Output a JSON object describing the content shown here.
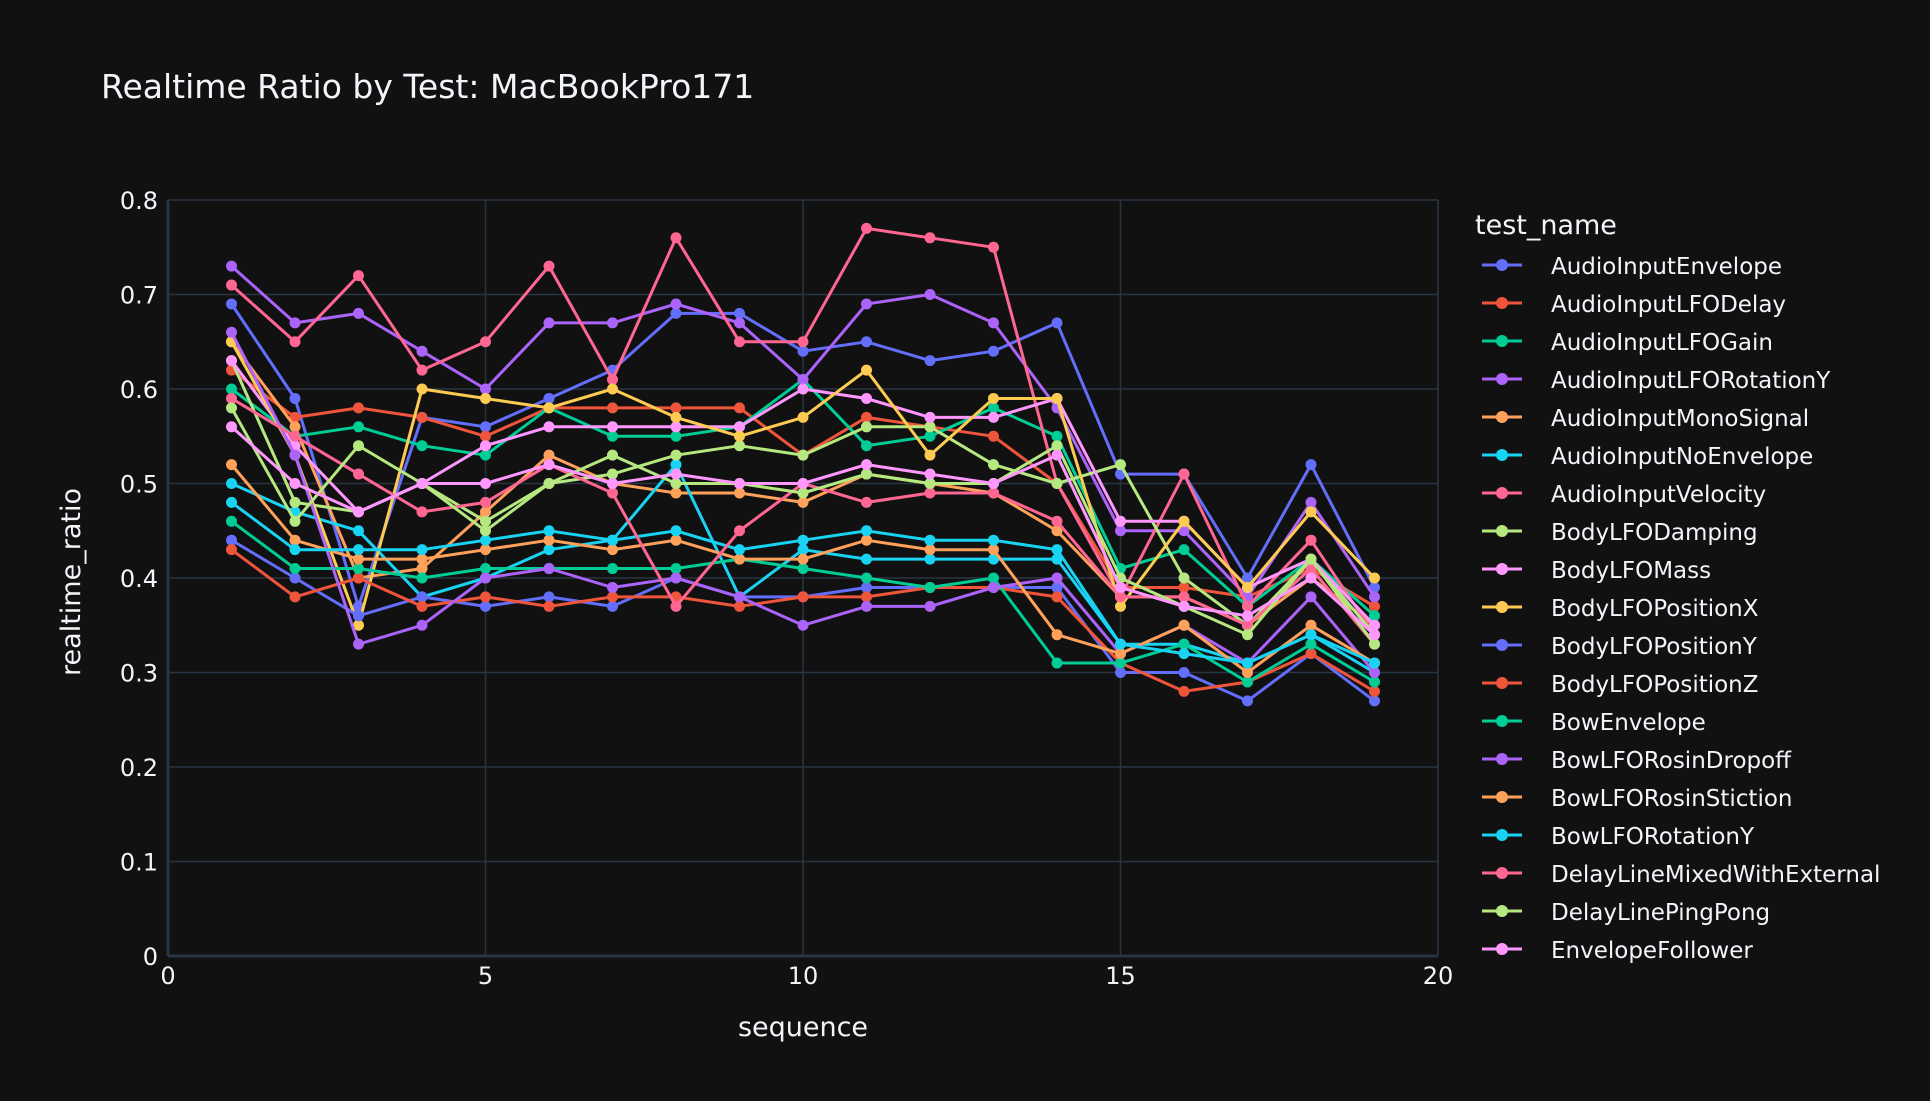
{
  "chart_data": {
    "type": "line",
    "title": "Realtime Ratio by Test: MacBookPro171",
    "xlabel": "sequence",
    "ylabel": "realtime_ratio",
    "xlim": [
      0,
      20
    ],
    "ylim": [
      0,
      0.8
    ],
    "x_ticks": [
      "0",
      "5",
      "10",
      "15",
      "20"
    ],
    "y_ticks": [
      "0",
      "0.1",
      "0.2",
      "0.3",
      "0.4",
      "0.5",
      "0.6",
      "0.7",
      "0.8"
    ],
    "grid": true,
    "markers": true,
    "background": "#111111",
    "text_color": "#f2f5fa",
    "grid_color": "#283442",
    "legend": {
      "title": "test_name",
      "placement": "right"
    },
    "x": [
      1,
      2,
      3,
      4,
      5,
      6,
      7,
      8,
      9,
      10,
      11,
      12,
      13,
      14,
      15,
      16,
      17,
      18,
      19
    ],
    "series": [
      {
        "name": "AudioInputEnvelope",
        "color": "#636efa",
        "values": [
          0.69,
          0.59,
          0.37,
          0.57,
          0.56,
          0.59,
          0.62,
          0.68,
          0.68,
          0.64,
          0.65,
          0.63,
          0.64,
          0.67,
          0.51,
          0.51,
          0.4,
          0.52,
          0.39
        ]
      },
      {
        "name": "AudioInputLFODelay",
        "color": "#EF553B",
        "values": [
          0.62,
          0.57,
          0.58,
          0.57,
          0.55,
          0.58,
          0.58,
          0.58,
          0.58,
          0.53,
          0.57,
          0.56,
          0.55,
          0.5,
          0.39,
          0.39,
          0.38,
          0.41,
          0.37
        ]
      },
      {
        "name": "AudioInputLFOGain",
        "color": "#00cc96",
        "values": [
          0.6,
          0.55,
          0.56,
          0.54,
          0.53,
          0.58,
          0.55,
          0.55,
          0.56,
          0.61,
          0.54,
          0.55,
          0.58,
          0.55,
          0.41,
          0.43,
          0.37,
          0.42,
          0.36
        ]
      },
      {
        "name": "AudioInputLFORotationY",
        "color": "#ab63fa",
        "values": [
          0.73,
          0.67,
          0.68,
          0.64,
          0.6,
          0.67,
          0.67,
          0.69,
          0.67,
          0.61,
          0.69,
          0.7,
          0.67,
          0.58,
          0.45,
          0.45,
          0.38,
          0.48,
          0.38
        ]
      },
      {
        "name": "AudioInputMonoSignal",
        "color": "#FFA15A",
        "values": [
          0.65,
          0.56,
          0.4,
          0.41,
          0.47,
          0.53,
          0.5,
          0.49,
          0.49,
          0.48,
          0.51,
          0.5,
          0.49,
          0.45,
          0.38,
          0.38,
          0.35,
          0.4,
          0.35
        ]
      },
      {
        "name": "AudioInputNoEnvelope",
        "color": "#19d3f3",
        "values": [
          0.5,
          0.47,
          0.45,
          0.38,
          0.4,
          0.43,
          0.44,
          0.52,
          0.38,
          0.43,
          0.42,
          0.42,
          0.42,
          0.42,
          0.33,
          0.33,
          0.31,
          0.34,
          0.3
        ]
      },
      {
        "name": "AudioInputVelocity",
        "color": "#FF6692",
        "values": [
          0.71,
          0.65,
          0.72,
          0.62,
          0.65,
          0.73,
          0.61,
          0.76,
          0.65,
          0.65,
          0.77,
          0.76,
          0.75,
          0.5,
          0.38,
          0.51,
          0.37,
          0.44,
          0.34
        ]
      },
      {
        "name": "BodyLFODamping",
        "color": "#B6E880",
        "values": [
          0.63,
          0.48,
          0.47,
          0.5,
          0.46,
          0.5,
          0.51,
          0.53,
          0.54,
          0.53,
          0.56,
          0.56,
          0.52,
          0.5,
          0.52,
          0.4,
          0.35,
          0.42,
          0.34
        ]
      },
      {
        "name": "BodyLFOMass",
        "color": "#FF97FF",
        "values": [
          0.63,
          0.54,
          0.47,
          0.5,
          0.54,
          0.56,
          0.56,
          0.56,
          0.56,
          0.6,
          0.59,
          0.57,
          0.57,
          0.59,
          0.46,
          0.46,
          0.39,
          0.42,
          0.35
        ]
      },
      {
        "name": "BodyLFOPositionX",
        "color": "#FECB52",
        "values": [
          0.65,
          0.53,
          0.35,
          0.6,
          0.59,
          0.58,
          0.6,
          0.57,
          0.55,
          0.57,
          0.62,
          0.53,
          0.59,
          0.59,
          0.37,
          0.46,
          0.39,
          0.47,
          0.4
        ]
      },
      {
        "name": "BodyLFOPositionY",
        "color": "#636efa",
        "values": [
          0.44,
          0.4,
          0.36,
          0.38,
          0.37,
          0.38,
          0.37,
          0.4,
          0.38,
          0.38,
          0.39,
          0.39,
          0.39,
          0.39,
          0.3,
          0.3,
          0.27,
          0.32,
          0.27
        ]
      },
      {
        "name": "BodyLFOPositionZ",
        "color": "#EF553B",
        "values": [
          0.43,
          0.38,
          0.4,
          0.37,
          0.38,
          0.37,
          0.38,
          0.38,
          0.37,
          0.38,
          0.38,
          0.39,
          0.39,
          0.38,
          0.31,
          0.28,
          0.29,
          0.32,
          0.28
        ]
      },
      {
        "name": "BowEnvelope",
        "color": "#00cc96",
        "values": [
          0.46,
          0.41,
          0.41,
          0.4,
          0.41,
          0.41,
          0.41,
          0.41,
          0.42,
          0.41,
          0.4,
          0.39,
          0.4,
          0.31,
          0.31,
          0.33,
          0.29,
          0.33,
          0.29
        ]
      },
      {
        "name": "BowLFORosinDropoff",
        "color": "#ab63fa",
        "values": [
          0.66,
          0.53,
          0.33,
          0.35,
          0.4,
          0.41,
          0.39,
          0.4,
          0.38,
          0.35,
          0.37,
          0.37,
          0.39,
          0.4,
          0.32,
          0.35,
          0.31,
          0.38,
          0.3
        ]
      },
      {
        "name": "BowLFORosinStiction",
        "color": "#FFA15A",
        "values": [
          0.52,
          0.44,
          0.42,
          0.42,
          0.43,
          0.44,
          0.43,
          0.44,
          0.42,
          0.42,
          0.44,
          0.43,
          0.43,
          0.34,
          0.32,
          0.35,
          0.3,
          0.35,
          0.31
        ]
      },
      {
        "name": "BowLFORotationY",
        "color": "#19d3f3",
        "values": [
          0.48,
          0.43,
          0.43,
          0.43,
          0.44,
          0.45,
          0.44,
          0.45,
          0.43,
          0.44,
          0.45,
          0.44,
          0.44,
          0.43,
          0.33,
          0.32,
          0.31,
          0.34,
          0.31
        ]
      },
      {
        "name": "DelayLineMixedWithExternal",
        "color": "#FF6692",
        "values": [
          0.59,
          0.55,
          0.51,
          0.47,
          0.48,
          0.52,
          0.49,
          0.37,
          0.45,
          0.5,
          0.48,
          0.49,
          0.49,
          0.46,
          0.38,
          0.38,
          0.35,
          0.41,
          0.33
        ]
      },
      {
        "name": "DelayLinePingPong",
        "color": "#B6E880",
        "values": [
          0.58,
          0.46,
          0.54,
          0.5,
          0.45,
          0.5,
          0.53,
          0.5,
          0.5,
          0.49,
          0.51,
          0.5,
          0.5,
          0.54,
          0.4,
          0.37,
          0.34,
          0.42,
          0.33
        ]
      },
      {
        "name": "EnvelopeFollower",
        "color": "#FF97FF",
        "values": [
          0.56,
          0.5,
          0.47,
          0.5,
          0.5,
          0.52,
          0.5,
          0.51,
          0.5,
          0.5,
          0.52,
          0.51,
          0.5,
          0.53,
          0.39,
          0.37,
          0.36,
          0.4,
          0.34
        ]
      }
    ]
  }
}
